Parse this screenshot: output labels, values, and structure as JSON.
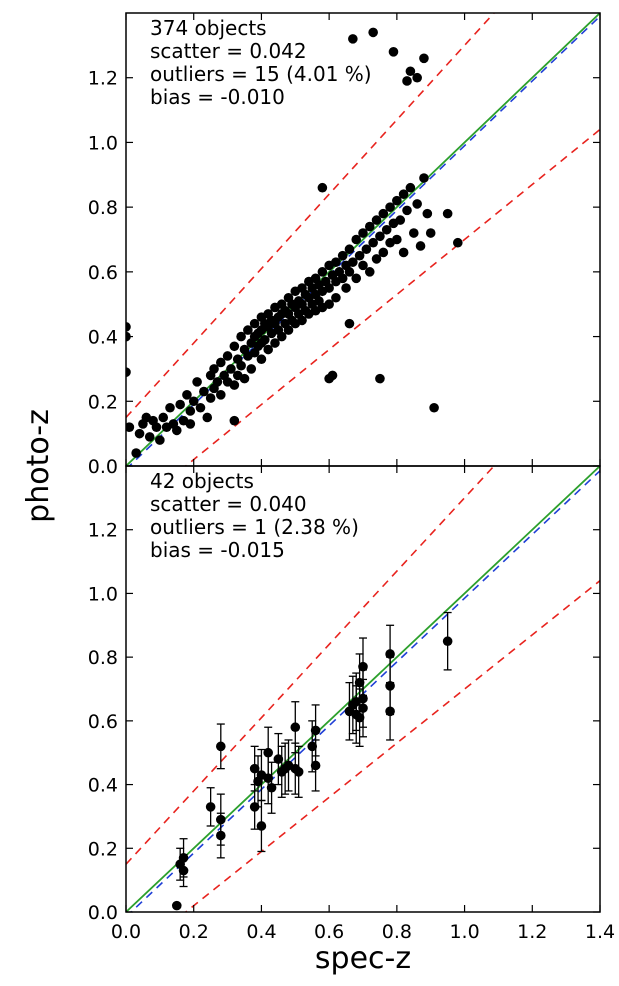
{
  "figure": {
    "ylabel": "photo-z",
    "xlabel": "spec-z",
    "x_tick_labels": [
      "0.0",
      "0.2",
      "0.4",
      "0.6",
      "0.8",
      "1.0",
      "1.2",
      "1.4"
    ],
    "y_tick_labels": [
      "0.0",
      "0.2",
      "0.4",
      "0.6",
      "0.8",
      "1.0",
      "1.2"
    ]
  },
  "colors": {
    "points": "#000000",
    "identity_line": "#2ca02c",
    "bias_line": "#1f3fd6",
    "outlier_bounds": "#e8231e"
  },
  "chart_data": [
    {
      "type": "scatter",
      "xlabel": "",
      "ylabel": "photo-z",
      "xlim": [
        0.0,
        1.4
      ],
      "ylim": [
        0.0,
        1.4
      ],
      "grid": false,
      "annotation": {
        "line1": "374 objects",
        "line2": "scatter = 0.042",
        "line3": "outliers = 15 (4.01 %)",
        "line4": "bias = -0.010"
      },
      "reference_lines": {
        "identity": "y = x",
        "bias_line": "y = x - 0.010",
        "outlier_bounds": [
          "y = x + 0.15(1+x)",
          "y = x - 0.15(1+x)"
        ]
      },
      "points": [
        [
          0.0,
          0.43
        ],
        [
          0.0,
          0.4
        ],
        [
          0.0,
          0.29
        ],
        [
          0.01,
          0.12
        ],
        [
          0.03,
          0.04
        ],
        [
          0.04,
          0.1
        ],
        [
          0.05,
          0.13
        ],
        [
          0.06,
          0.15
        ],
        [
          0.07,
          0.09
        ],
        [
          0.08,
          0.14
        ],
        [
          0.09,
          0.12
        ],
        [
          0.1,
          0.08
        ],
        [
          0.11,
          0.15
        ],
        [
          0.12,
          0.12
        ],
        [
          0.13,
          0.18
        ],
        [
          0.14,
          0.13
        ],
        [
          0.15,
          0.11
        ],
        [
          0.16,
          0.19
        ],
        [
          0.17,
          0.14
        ],
        [
          0.18,
          0.22
        ],
        [
          0.19,
          0.13
        ],
        [
          0.19,
          0.17
        ],
        [
          0.2,
          0.2
        ],
        [
          0.21,
          0.26
        ],
        [
          0.22,
          0.18
        ],
        [
          0.23,
          0.23
        ],
        [
          0.24,
          0.15
        ],
        [
          0.25,
          0.28
        ],
        [
          0.25,
          0.21
        ],
        [
          0.26,
          0.24
        ],
        [
          0.26,
          0.3
        ],
        [
          0.27,
          0.26
        ],
        [
          0.28,
          0.32
        ],
        [
          0.28,
          0.22
        ],
        [
          0.29,
          0.28
        ],
        [
          0.3,
          0.34
        ],
        [
          0.3,
          0.26
        ],
        [
          0.31,
          0.3
        ],
        [
          0.32,
          0.37
        ],
        [
          0.32,
          0.25
        ],
        [
          0.33,
          0.33
        ],
        [
          0.33,
          0.28
        ],
        [
          0.34,
          0.4
        ],
        [
          0.34,
          0.31
        ],
        [
          0.35,
          0.36
        ],
        [
          0.35,
          0.27
        ],
        [
          0.36,
          0.42
        ],
        [
          0.36,
          0.34
        ],
        [
          0.37,
          0.38
        ],
        [
          0.37,
          0.3
        ],
        [
          0.38,
          0.44
        ],
        [
          0.38,
          0.4
        ],
        [
          0.38,
          0.35
        ],
        [
          0.39,
          0.41
        ],
        [
          0.39,
          0.37
        ],
        [
          0.4,
          0.46
        ],
        [
          0.4,
          0.42
        ],
        [
          0.4,
          0.38
        ],
        [
          0.4,
          0.33
        ],
        [
          0.41,
          0.44
        ],
        [
          0.41,
          0.39
        ],
        [
          0.42,
          0.47
        ],
        [
          0.42,
          0.43
        ],
        [
          0.42,
          0.36
        ],
        [
          0.43,
          0.45
        ],
        [
          0.43,
          0.41
        ],
        [
          0.44,
          0.49
        ],
        [
          0.44,
          0.44
        ],
        [
          0.44,
          0.38
        ],
        [
          0.45,
          0.46
        ],
        [
          0.45,
          0.42
        ],
        [
          0.46,
          0.5
        ],
        [
          0.46,
          0.47
        ],
        [
          0.46,
          0.4
        ],
        [
          0.47,
          0.48
        ],
        [
          0.47,
          0.44
        ],
        [
          0.48,
          0.52
        ],
        [
          0.48,
          0.47
        ],
        [
          0.48,
          0.42
        ],
        [
          0.49,
          0.5
        ],
        [
          0.49,
          0.45
        ],
        [
          0.5,
          0.54
        ],
        [
          0.5,
          0.49
        ],
        [
          0.5,
          0.44
        ],
        [
          0.51,
          0.51
        ],
        [
          0.51,
          0.47
        ],
        [
          0.52,
          0.55
        ],
        [
          0.52,
          0.5
        ],
        [
          0.52,
          0.45
        ],
        [
          0.53,
          0.53
        ],
        [
          0.53,
          0.48
        ],
        [
          0.54,
          0.57
        ],
        [
          0.54,
          0.52
        ],
        [
          0.54,
          0.47
        ],
        [
          0.55,
          0.55
        ],
        [
          0.55,
          0.5
        ],
        [
          0.56,
          0.58
        ],
        [
          0.56,
          0.53
        ],
        [
          0.56,
          0.48
        ],
        [
          0.57,
          0.56
        ],
        [
          0.57,
          0.51
        ],
        [
          0.58,
          0.6
        ],
        [
          0.58,
          0.54
        ],
        [
          0.58,
          0.49
        ],
        [
          0.59,
          0.57
        ],
        [
          0.6,
          0.62
        ],
        [
          0.6,
          0.55
        ],
        [
          0.6,
          0.5
        ],
        [
          0.61,
          0.59
        ],
        [
          0.62,
          0.63
        ],
        [
          0.62,
          0.57
        ],
        [
          0.62,
          0.52
        ],
        [
          0.63,
          0.6
        ],
        [
          0.64,
          0.65
        ],
        [
          0.64,
          0.58
        ],
        [
          0.65,
          0.62
        ],
        [
          0.65,
          0.55
        ],
        [
          0.66,
          0.67
        ],
        [
          0.66,
          0.6
        ],
        [
          0.67,
          0.63
        ],
        [
          0.68,
          0.7
        ],
        [
          0.68,
          0.58
        ],
        [
          0.69,
          0.65
        ],
        [
          0.7,
          0.72
        ],
        [
          0.7,
          0.62
        ],
        [
          0.71,
          0.67
        ],
        [
          0.72,
          0.74
        ],
        [
          0.72,
          0.6
        ],
        [
          0.73,
          0.69
        ],
        [
          0.74,
          0.76
        ],
        [
          0.74,
          0.64
        ],
        [
          0.75,
          0.71
        ],
        [
          0.76,
          0.78
        ],
        [
          0.76,
          0.66
        ],
        [
          0.77,
          0.73
        ],
        [
          0.78,
          0.8
        ],
        [
          0.78,
          0.69
        ],
        [
          0.79,
          0.75
        ],
        [
          0.8,
          0.82
        ],
        [
          0.8,
          0.7
        ],
        [
          0.81,
          0.76
        ],
        [
          0.82,
          0.84
        ],
        [
          0.82,
          0.66
        ],
        [
          0.83,
          0.79
        ],
        [
          0.84,
          0.86
        ],
        [
          0.85,
          0.72
        ],
        [
          0.86,
          0.81
        ],
        [
          0.87,
          0.68
        ],
        [
          0.88,
          0.89
        ],
        [
          0.89,
          0.78
        ],
        [
          0.9,
          0.72
        ],
        [
          0.95,
          0.78
        ],
        [
          0.98,
          0.69
        ],
        [
          0.58,
          0.86
        ],
        [
          0.6,
          0.27
        ],
        [
          0.61,
          0.28
        ],
        [
          0.66,
          0.44
        ],
        [
          0.75,
          0.27
        ],
        [
          0.91,
          0.18
        ],
        [
          0.32,
          0.14
        ],
        [
          0.67,
          1.32
        ],
        [
          0.73,
          1.34
        ],
        [
          0.79,
          1.28
        ],
        [
          0.84,
          1.22
        ],
        [
          0.86,
          1.2
        ],
        [
          0.88,
          1.26
        ],
        [
          0.83,
          1.19
        ]
      ]
    },
    {
      "type": "scatter",
      "xlabel": "spec-z",
      "ylabel": "photo-z",
      "xlim": [
        0.0,
        1.4
      ],
      "ylim": [
        0.0,
        1.4
      ],
      "grid": false,
      "annotation": {
        "line1": "42 objects",
        "line2": "scatter = 0.040",
        "line3": "outliers = 1 (2.38 %)",
        "line4": "bias = -0.015"
      },
      "reference_lines": {
        "identity": "y = x",
        "bias_line": "y = x - 0.015",
        "outlier_bounds": [
          "y = x + 0.15(1+x)",
          "y = x - 0.15(1+x)"
        ]
      },
      "points": [
        [
          0.15,
          0.02,
          0.0
        ],
        [
          0.16,
          0.15,
          0.05
        ],
        [
          0.17,
          0.13,
          0.05
        ],
        [
          0.17,
          0.17,
          0.06
        ],
        [
          0.25,
          0.33,
          0.06
        ],
        [
          0.28,
          0.52,
          0.07
        ],
        [
          0.28,
          0.29,
          0.08
        ],
        [
          0.28,
          0.24,
          0.07
        ],
        [
          0.38,
          0.45,
          0.07
        ],
        [
          0.38,
          0.33,
          0.07
        ],
        [
          0.39,
          0.41,
          0.08
        ],
        [
          0.4,
          0.43,
          0.08
        ],
        [
          0.4,
          0.27,
          0.08
        ],
        [
          0.42,
          0.5,
          0.08
        ],
        [
          0.42,
          0.42,
          0.08
        ],
        [
          0.43,
          0.39,
          0.08
        ],
        [
          0.45,
          0.48,
          0.08
        ],
        [
          0.46,
          0.44,
          0.08
        ],
        [
          0.47,
          0.45,
          0.08
        ],
        [
          0.48,
          0.46,
          0.08
        ],
        [
          0.5,
          0.58,
          0.08
        ],
        [
          0.5,
          0.45,
          0.08
        ],
        [
          0.51,
          0.44,
          0.08
        ],
        [
          0.55,
          0.52,
          0.08
        ],
        [
          0.56,
          0.57,
          0.08
        ],
        [
          0.56,
          0.46,
          0.08
        ],
        [
          0.66,
          0.63,
          0.09
        ],
        [
          0.67,
          0.65,
          0.09
        ],
        [
          0.68,
          0.66,
          0.09
        ],
        [
          0.68,
          0.62,
          0.09
        ],
        [
          0.69,
          0.72,
          0.09
        ],
        [
          0.69,
          0.61,
          0.09
        ],
        [
          0.7,
          0.64,
          0.09
        ],
        [
          0.7,
          0.67,
          0.09
        ],
        [
          0.7,
          0.77,
          0.09
        ],
        [
          0.78,
          0.71,
          0.09
        ],
        [
          0.78,
          0.63,
          0.09
        ],
        [
          0.78,
          0.81,
          0.09
        ],
        [
          0.95,
          0.85,
          0.09
        ]
      ]
    }
  ]
}
